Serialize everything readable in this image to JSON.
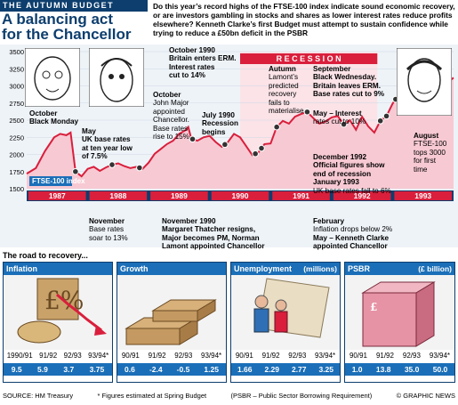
{
  "header": {
    "kicker": "THE AUTUMN BUDGET",
    "title_line1": "A balancing act",
    "title_line2": "for the Chancellor",
    "intro": "Do this year’s record highs of the FTSE-100 index indicate sound economic recovery, or are investors gambling in stocks and shares as lower interest rates reduce profits elsewhere? Kenneth Clarke’s first Budget must attempt to sustain confidence while trying to reduce a £50bn deficit in the PSBR"
  },
  "chart_data": {
    "type": "line",
    "series": [
      {
        "name": "FTSE-100 index",
        "x": [
          1987.0,
          1987.15,
          1987.3,
          1987.45,
          1987.55,
          1987.65,
          1987.72,
          1987.8,
          1987.9,
          1988.0,
          1988.1,
          1988.2,
          1988.3,
          1988.4,
          1988.5,
          1988.6,
          1988.7,
          1988.8,
          1988.9,
          1989.0,
          1989.1,
          1989.2,
          1989.3,
          1989.4,
          1989.5,
          1989.6,
          1989.65,
          1989.7,
          1989.8,
          1989.9,
          1990.0,
          1990.1,
          1990.2,
          1990.3,
          1990.4,
          1990.5,
          1990.6,
          1990.7,
          1990.8,
          1990.9,
          1991.0,
          1991.1,
          1991.2,
          1991.3,
          1991.4,
          1991.5,
          1991.6,
          1991.7,
          1991.8,
          1991.9,
          1992.0,
          1992.1,
          1992.2,
          1992.3,
          1992.4,
          1992.5,
          1992.6,
          1992.7,
          1992.8,
          1992.9,
          1993.0,
          1993.1,
          1993.2,
          1993.3,
          1993.4,
          1993.5,
          1993.6,
          1993.7,
          1993.8,
          1993.9,
          1994.0
        ],
        "values": [
          1720,
          1800,
          2050,
          2250,
          2300,
          2280,
          2320,
          1750,
          1680,
          1790,
          1820,
          1760,
          1810,
          1850,
          1870,
          1830,
          1800,
          1820,
          1790,
          1880,
          2010,
          2080,
          2150,
          2200,
          2300,
          2350,
          2400,
          2230,
          2200,
          2250,
          2270,
          2180,
          2110,
          2180,
          2300,
          2250,
          2120,
          1990,
          2030,
          2150,
          2160,
          2400,
          2490,
          2450,
          2550,
          2590,
          2620,
          2530,
          2450,
          2480,
          2540,
          2560,
          2440,
          2500,
          2360,
          2550,
          2410,
          2320,
          2490,
          2560,
          2740,
          2870,
          2850,
          2900,
          2870,
          2860,
          2950,
          2990,
          3000,
          3050,
          3120
        ]
      }
    ],
    "ylim": [
      1500,
      3500
    ],
    "yticks": [
      1500,
      1750,
      2000,
      2250,
      2500,
      2750,
      3000,
      3250,
      3500
    ],
    "xlim": [
      1987,
      1994
    ],
    "year_labels": [
      "1987",
      "1988",
      "1989",
      "1990",
      "1991",
      "1992",
      "1993"
    ],
    "legend": "FTSE-100 index",
    "recession_label": "R E C E S S I O N",
    "recession_range": [
      1990.5,
      1992.75
    ],
    "events": [
      1987.8,
      1988.4,
      1988.85,
      1989.72,
      1990.25,
      1990.75,
      1990.85,
      1991.1,
      1991.6,
      1992.2,
      1992.8,
      1992.9,
      1993.05,
      1993.15,
      1993.25,
      1993.6
    ]
  },
  "annotations": {
    "oct1987": [
      "October",
      "Black Monday"
    ],
    "may1988": [
      "May",
      "UK base rates",
      "at ten year low",
      "of 7.5%"
    ],
    "nov1988": [
      "November",
      "Base rates",
      "soar to 13%"
    ],
    "oct1989": [
      "October",
      "John Major",
      "appointed",
      "Chancellor.",
      "Base rates",
      "rise to 15%"
    ],
    "jul1990": [
      "July 1990",
      "Recession",
      "begins"
    ],
    "oct1990": [
      "October 1990",
      "Britain enters ERM.",
      "Interest rates",
      "cut to 14%"
    ],
    "nov1990": [
      "November 1990",
      "Margaret Thatcher resigns,",
      "Major becomes PM, Norman",
      "Lamont appointed Chancellor"
    ],
    "autumn1991": [
      "Autumn",
      "Lamont’s",
      "predicted",
      "recovery",
      "fails to",
      "materialise"
    ],
    "sep1992": [
      "September",
      "Black Wednesday.",
      "Britain leaves ERM.",
      "Base rates cut to 9%"
    ],
    "may1993": [
      "May – Interest",
      "rates cut to 10%"
    ],
    "dec1992": [
      "December 1992",
      "Official figures show",
      "end of recession",
      "January 1993",
      "UK base rates fall to 6%"
    ],
    "feb1993": [
      "February",
      "Inflation drops below 2%",
      "May – Kenneth Clarke",
      "appointed Chancellor"
    ],
    "aug1993": [
      "August",
      "FTSE-100",
      "tops 3000",
      "for first",
      "time"
    ]
  },
  "bottom": {
    "title": "The road to recovery...",
    "panels": [
      {
        "head": "Inflation",
        "unit": "",
        "years": [
          "1990/91",
          "91/92",
          "92/93",
          "93/94*"
        ],
        "values": [
          "9.5",
          "5.9",
          "3.7",
          "3.75"
        ]
      },
      {
        "head": "Growth",
        "unit": "",
        "years": [
          "90/91",
          "91/92",
          "92/93",
          "93/94*"
        ],
        "values": [
          "0.6",
          "-2.4",
          "-0.5",
          "1.25"
        ]
      },
      {
        "head": "Unemployment",
        "unit": "(millions)",
        "years": [
          "90/91",
          "91/92",
          "92/93",
          "93/94*"
        ],
        "values": [
          "1.66",
          "2.29",
          "2.77",
          "3.25"
        ]
      },
      {
        "head": "PSBR",
        "unit": "(£ billion)",
        "years": [
          "90/91",
          "91/92",
          "92/93",
          "93/94*"
        ],
        "values": [
          "1.0",
          "13.8",
          "35.0",
          "50.0"
        ]
      }
    ]
  },
  "footer": {
    "source": "SOURCE: HM Treasury",
    "note": "* Figures estimated at Spring Budget",
    "psbr": "(PSBR – Public Sector Borrowing Requirement)",
    "credit": "© GRAPHIC NEWS"
  },
  "colors": {
    "navy": "#0d3e6e",
    "blue": "#1b6fb8",
    "red": "#d91f3c",
    "pink": "#f7c9d3",
    "grid": "#cfd8e3"
  }
}
